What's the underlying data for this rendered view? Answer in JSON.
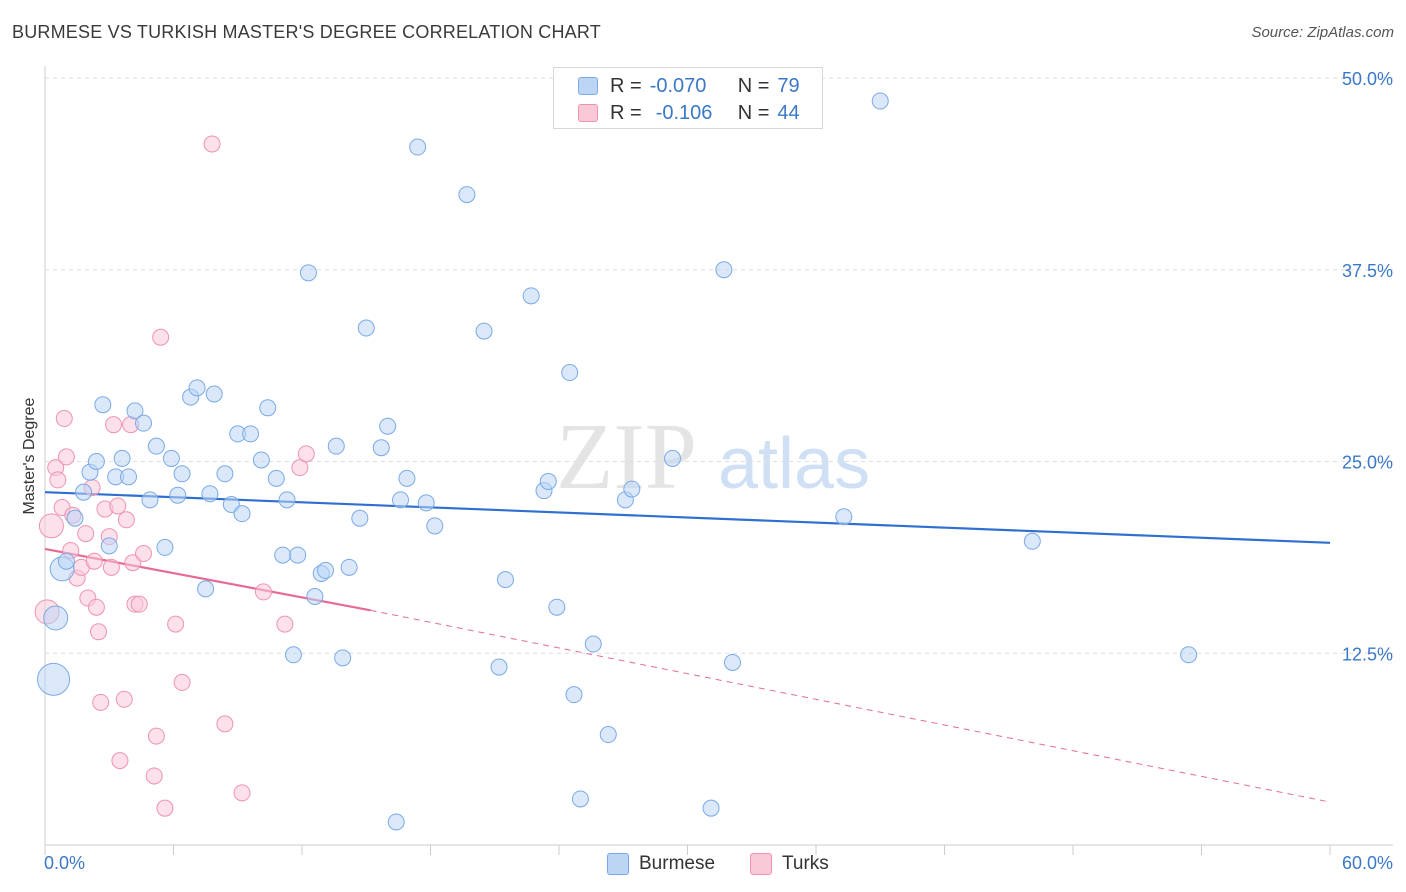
{
  "title": "BURMESE VS TURKISH MASTER'S DEGREE CORRELATION CHART",
  "source": "Source: ZipAtlas.com",
  "watermark": {
    "zip": "ZIP",
    "atlas": "atlas"
  },
  "legend": {
    "series1": {
      "r_label": "R =",
      "r_value": "-0.070",
      "n_label": "N =",
      "n_value": "79"
    },
    "series2": {
      "r_label": "R =",
      "r_value": "-0.106",
      "n_label": "N =",
      "n_value": "44"
    }
  },
  "colors": {
    "burmese": "#7aaae6",
    "burmese_fill": "#bcd5f5",
    "turks": "#ef93b0",
    "turks_fill": "#f9c9d8",
    "axis_text": "#3b78c7",
    "burmese_line": "#2f6fcf",
    "turks_line": "#e66b95"
  },
  "chart_data": {
    "type": "scatter",
    "title": "BURMESE VS TURKISH MASTER'S DEGREE CORRELATION CHART",
    "xlabel": "",
    "ylabel": "Master's Degree",
    "xlim": [
      0,
      60
    ],
    "ylim": [
      0,
      50
    ],
    "x_tick_labels": [
      "0.0%",
      "60.0%"
    ],
    "y_ticks": [
      12.5,
      25.0,
      37.5,
      50.0
    ],
    "y_tick_labels": [
      "12.5%",
      "25.0%",
      "37.5%",
      "50.0%"
    ],
    "grid": true,
    "legend_position": "top-center",
    "series": [
      {
        "name": "Burmese",
        "r": -0.07,
        "n": 79,
        "trend": {
          "x": [
            0,
            60
          ],
          "y": [
            23.0,
            19.7
          ]
        },
        "points": [
          {
            "x": 0.4,
            "y": 10.8,
            "s": 3
          },
          {
            "x": 0.5,
            "y": 14.8,
            "s": 2
          },
          {
            "x": 0.8,
            "y": 18.0,
            "s": 2
          },
          {
            "x": 1.0,
            "y": 18.5,
            "s": 1
          },
          {
            "x": 1.4,
            "y": 21.3,
            "s": 1
          },
          {
            "x": 1.8,
            "y": 23.0,
            "s": 1
          },
          {
            "x": 2.1,
            "y": 24.3,
            "s": 1
          },
          {
            "x": 2.4,
            "y": 25.0,
            "s": 1
          },
          {
            "x": 2.7,
            "y": 28.7,
            "s": 1
          },
          {
            "x": 3.0,
            "y": 19.5,
            "s": 1
          },
          {
            "x": 3.3,
            "y": 24.0,
            "s": 1
          },
          {
            "x": 3.6,
            "y": 25.2,
            "s": 1
          },
          {
            "x": 3.9,
            "y": 24.0,
            "s": 1
          },
          {
            "x": 4.2,
            "y": 28.3,
            "s": 1
          },
          {
            "x": 4.6,
            "y": 27.5,
            "s": 1
          },
          {
            "x": 4.9,
            "y": 22.5,
            "s": 1
          },
          {
            "x": 5.2,
            "y": 26.0,
            "s": 1
          },
          {
            "x": 5.6,
            "y": 19.4,
            "s": 1
          },
          {
            "x": 5.9,
            "y": 25.2,
            "s": 1
          },
          {
            "x": 6.2,
            "y": 22.8,
            "s": 1
          },
          {
            "x": 6.4,
            "y": 24.2,
            "s": 1
          },
          {
            "x": 6.8,
            "y": 29.2,
            "s": 1
          },
          {
            "x": 7.1,
            "y": 29.8,
            "s": 1
          },
          {
            "x": 7.5,
            "y": 16.7,
            "s": 1
          },
          {
            "x": 7.7,
            "y": 22.9,
            "s": 1
          },
          {
            "x": 7.9,
            "y": 29.4,
            "s": 1
          },
          {
            "x": 8.4,
            "y": 24.2,
            "s": 1
          },
          {
            "x": 8.7,
            "y": 22.2,
            "s": 1
          },
          {
            "x": 9.0,
            "y": 26.8,
            "s": 1
          },
          {
            "x": 9.2,
            "y": 21.6,
            "s": 1
          },
          {
            "x": 9.6,
            "y": 26.8,
            "s": 1
          },
          {
            "x": 10.1,
            "y": 25.1,
            "s": 1
          },
          {
            "x": 10.4,
            "y": 28.5,
            "s": 1
          },
          {
            "x": 10.8,
            "y": 23.9,
            "s": 1
          },
          {
            "x": 11.1,
            "y": 18.9,
            "s": 1
          },
          {
            "x": 11.3,
            "y": 22.5,
            "s": 1
          },
          {
            "x": 11.6,
            "y": 12.4,
            "s": 1
          },
          {
            "x": 11.8,
            "y": 18.9,
            "s": 1
          },
          {
            "x": 12.3,
            "y": 37.3,
            "s": 1
          },
          {
            "x": 12.6,
            "y": 16.2,
            "s": 1
          },
          {
            "x": 12.9,
            "y": 17.7,
            "s": 1
          },
          {
            "x": 13.1,
            "y": 17.9,
            "s": 1
          },
          {
            "x": 13.6,
            "y": 26.0,
            "s": 1
          },
          {
            "x": 13.9,
            "y": 12.2,
            "s": 1
          },
          {
            "x": 14.2,
            "y": 18.1,
            "s": 1
          },
          {
            "x": 14.7,
            "y": 21.3,
            "s": 1
          },
          {
            "x": 15.0,
            "y": 33.7,
            "s": 1
          },
          {
            "x": 15.7,
            "y": 25.9,
            "s": 1
          },
          {
            "x": 16.0,
            "y": 27.3,
            "s": 1
          },
          {
            "x": 16.4,
            "y": 1.5,
            "s": 1
          },
          {
            "x": 16.6,
            "y": 22.5,
            "s": 1
          },
          {
            "x": 16.9,
            "y": 23.9,
            "s": 1
          },
          {
            "x": 17.4,
            "y": 45.5,
            "s": 1
          },
          {
            "x": 17.8,
            "y": 22.3,
            "s": 1
          },
          {
            "x": 18.2,
            "y": 20.8,
            "s": 1
          },
          {
            "x": 19.7,
            "y": 42.4,
            "s": 1
          },
          {
            "x": 20.5,
            "y": 33.5,
            "s": 1
          },
          {
            "x": 21.2,
            "y": 11.6,
            "s": 1
          },
          {
            "x": 21.5,
            "y": 17.3,
            "s": 1
          },
          {
            "x": 22.7,
            "y": 35.8,
            "s": 1
          },
          {
            "x": 23.3,
            "y": 23.1,
            "s": 1
          },
          {
            "x": 23.5,
            "y": 23.7,
            "s": 1
          },
          {
            "x": 23.9,
            "y": 15.5,
            "s": 1
          },
          {
            "x": 24.5,
            "y": 30.8,
            "s": 1
          },
          {
            "x": 24.7,
            "y": 9.8,
            "s": 1
          },
          {
            "x": 25.0,
            "y": 3.0,
            "s": 1
          },
          {
            "x": 25.6,
            "y": 13.1,
            "s": 1
          },
          {
            "x": 26.3,
            "y": 7.2,
            "s": 1
          },
          {
            "x": 27.1,
            "y": 22.5,
            "s": 1
          },
          {
            "x": 27.4,
            "y": 23.2,
            "s": 1
          },
          {
            "x": 29.3,
            "y": 25.2,
            "s": 1
          },
          {
            "x": 31.1,
            "y": 2.4,
            "s": 1
          },
          {
            "x": 31.7,
            "y": 37.5,
            "s": 1
          },
          {
            "x": 32.1,
            "y": 11.9,
            "s": 1
          },
          {
            "x": 37.3,
            "y": 21.4,
            "s": 1
          },
          {
            "x": 39.0,
            "y": 48.5,
            "s": 1
          },
          {
            "x": 46.1,
            "y": 19.8,
            "s": 1
          },
          {
            "x": 53.4,
            "y": 12.4,
            "s": 1
          }
        ]
      },
      {
        "name": "Turks",
        "r": -0.106,
        "n": 44,
        "trend_solid": {
          "x": [
            0,
            15.2
          ],
          "y": [
            19.3,
            15.3
          ]
        },
        "trend_dashed": {
          "x": [
            15.2,
            60
          ],
          "y": [
            15.3,
            2.8
          ]
        },
        "points": [
          {
            "x": 0.1,
            "y": 15.2,
            "s": 2
          },
          {
            "x": 0.3,
            "y": 20.8,
            "s": 2
          },
          {
            "x": 0.5,
            "y": 24.6,
            "s": 1
          },
          {
            "x": 0.6,
            "y": 23.8,
            "s": 1
          },
          {
            "x": 0.8,
            "y": 22.0,
            "s": 1
          },
          {
            "x": 0.9,
            "y": 27.8,
            "s": 1
          },
          {
            "x": 1.0,
            "y": 25.3,
            "s": 1
          },
          {
            "x": 1.2,
            "y": 19.2,
            "s": 1
          },
          {
            "x": 1.3,
            "y": 21.5,
            "s": 1
          },
          {
            "x": 1.5,
            "y": 17.4,
            "s": 1
          },
          {
            "x": 1.7,
            "y": 18.1,
            "s": 1
          },
          {
            "x": 1.9,
            "y": 20.3,
            "s": 1
          },
          {
            "x": 2.0,
            "y": 16.1,
            "s": 1
          },
          {
            "x": 2.2,
            "y": 23.3,
            "s": 1
          },
          {
            "x": 2.3,
            "y": 18.5,
            "s": 1
          },
          {
            "x": 2.4,
            "y": 15.5,
            "s": 1
          },
          {
            "x": 2.5,
            "y": 13.9,
            "s": 1
          },
          {
            "x": 2.6,
            "y": 9.3,
            "s": 1
          },
          {
            "x": 2.8,
            "y": 21.9,
            "s": 1
          },
          {
            "x": 3.0,
            "y": 20.1,
            "s": 1
          },
          {
            "x": 3.1,
            "y": 18.1,
            "s": 1
          },
          {
            "x": 3.2,
            "y": 27.4,
            "s": 1
          },
          {
            "x": 3.4,
            "y": 22.1,
            "s": 1
          },
          {
            "x": 3.5,
            "y": 5.5,
            "s": 1
          },
          {
            "x": 3.7,
            "y": 9.5,
            "s": 1
          },
          {
            "x": 3.8,
            "y": 21.2,
            "s": 1
          },
          {
            "x": 4.0,
            "y": 27.4,
            "s": 1
          },
          {
            "x": 4.1,
            "y": 18.4,
            "s": 1
          },
          {
            "x": 4.2,
            "y": 15.7,
            "s": 1
          },
          {
            "x": 4.4,
            "y": 15.7,
            "s": 1
          },
          {
            "x": 4.6,
            "y": 19.0,
            "s": 1
          },
          {
            "x": 5.1,
            "y": 4.5,
            "s": 1
          },
          {
            "x": 5.2,
            "y": 7.1,
            "s": 1
          },
          {
            "x": 5.4,
            "y": 33.1,
            "s": 1
          },
          {
            "x": 5.6,
            "y": 2.4,
            "s": 1
          },
          {
            "x": 6.1,
            "y": 14.4,
            "s": 1
          },
          {
            "x": 6.4,
            "y": 10.6,
            "s": 1
          },
          {
            "x": 7.8,
            "y": 45.7,
            "s": 1
          },
          {
            "x": 8.4,
            "y": 7.9,
            "s": 1
          },
          {
            "x": 9.2,
            "y": 3.4,
            "s": 1
          },
          {
            "x": 10.2,
            "y": 16.5,
            "s": 1
          },
          {
            "x": 11.2,
            "y": 14.4,
            "s": 1
          },
          {
            "x": 11.9,
            "y": 24.6,
            "s": 1
          },
          {
            "x": 12.2,
            "y": 25.5,
            "s": 1
          }
        ]
      }
    ]
  }
}
